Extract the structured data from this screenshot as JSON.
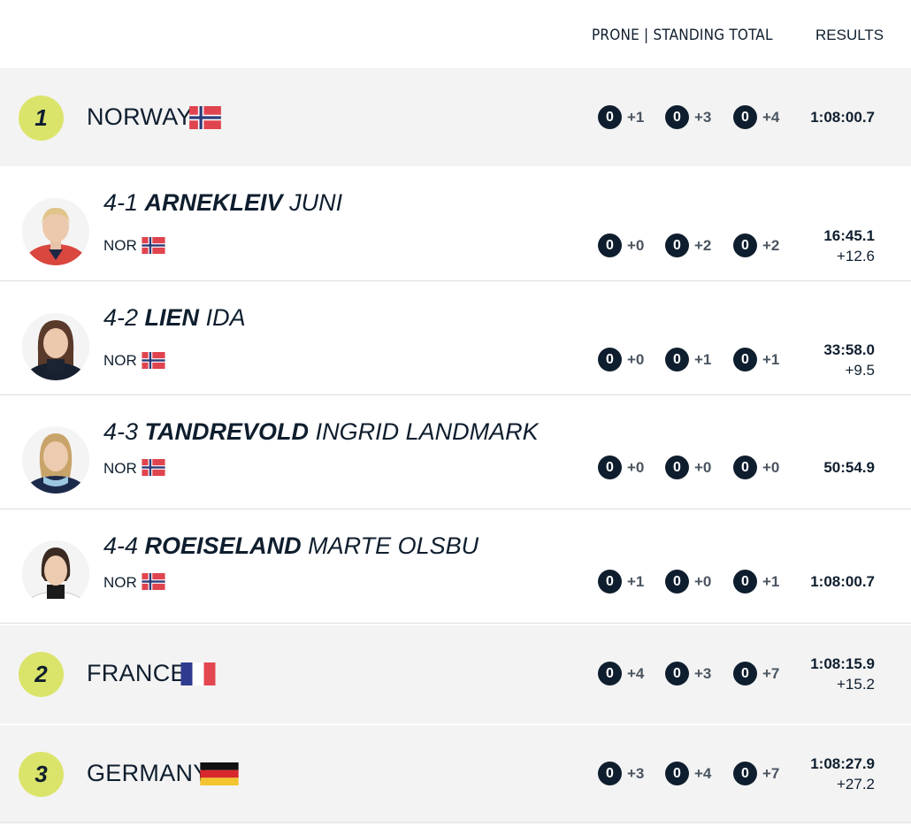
{
  "header": {
    "shooting_label": "PRONE | STANDING TOTAL",
    "results_label": "RESULTS"
  },
  "teams": [
    {
      "rank": "1",
      "name": "NORWAY",
      "flag": "norway-flag-icon",
      "shooting": [
        [
          "0",
          "+1"
        ],
        [
          "0",
          "+3"
        ],
        [
          "0",
          "+4"
        ]
      ],
      "result": "1:08:00.7",
      "behind": "",
      "athletes": [
        {
          "leg": "4-1",
          "last": "ARNEKLEIV",
          "first": "JUNI",
          "nat": "NOR",
          "shooting": [
            [
              "0",
              "+0"
            ],
            [
              "0",
              "+2"
            ],
            [
              "0",
              "+2"
            ]
          ],
          "result": "16:45.1",
          "behind": "+12.6"
        },
        {
          "leg": "4-2",
          "last": "LIEN",
          "first": "IDA",
          "nat": "NOR",
          "shooting": [
            [
              "0",
              "+0"
            ],
            [
              "0",
              "+1"
            ],
            [
              "0",
              "+1"
            ]
          ],
          "result": "33:58.0",
          "behind": "+9.5"
        },
        {
          "leg": "4-3",
          "last": "TANDREVOLD",
          "first": "INGRID LANDMARK",
          "nat": "NOR",
          "shooting": [
            [
              "0",
              "+0"
            ],
            [
              "0",
              "+0"
            ],
            [
              "0",
              "+0"
            ]
          ],
          "result": "50:54.9",
          "behind": ""
        },
        {
          "leg": "4-4",
          "last": "ROEISELAND",
          "first": "MARTE OLSBU",
          "nat": "NOR",
          "shooting": [
            [
              "0",
              "+1"
            ],
            [
              "0",
              "+0"
            ],
            [
              "0",
              "+1"
            ]
          ],
          "result": "1:08:00.7",
          "behind": ""
        }
      ]
    },
    {
      "rank": "2",
      "name": "FRANCE",
      "flag": "france-flag-icon",
      "shooting": [
        [
          "0",
          "+4"
        ],
        [
          "0",
          "+3"
        ],
        [
          "0",
          "+7"
        ]
      ],
      "result": "1:08:15.9",
      "behind": "+15.2"
    },
    {
      "rank": "3",
      "name": "GERMANY",
      "flag": "germany-flag-icon",
      "shooting": [
        [
          "0",
          "+3"
        ],
        [
          "0",
          "+4"
        ],
        [
          "0",
          "+7"
        ]
      ],
      "result": "1:08:27.9",
      "behind": "+27.2"
    }
  ],
  "colors": {
    "rank_badge": "#dbe46a",
    "shoot_badge": "#0f1e2e",
    "team_row_bg": "#f3f3f3"
  }
}
